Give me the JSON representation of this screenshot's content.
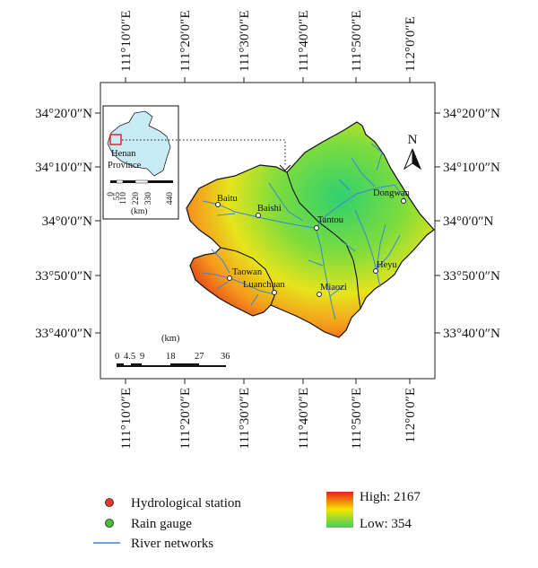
{
  "map": {
    "top_lon_labels": [
      "111°10′0″E",
      "111°20′0″E",
      "111°30′0″E",
      "111°40′0″E",
      "111°50′0″E",
      "112°0′0″E"
    ],
    "bottom_lon_labels": [
      "111°10′0″E",
      "111°20′0″E",
      "111°30′0″E",
      "111°40′0″E",
      "111°50′0″E",
      "112°0′0″E"
    ],
    "left_lat_labels": [
      "34°20′0″N",
      "34°10′0″N",
      "34°0′0″N",
      "33°50′0″N",
      "33°40′0″N"
    ],
    "right_lat_labels": [
      "34°20′0″N",
      "34°10′0″N",
      "34°0′0″N",
      "33°50′0″N",
      "33°40′0″N"
    ],
    "stations": {
      "baitu": "Baitu",
      "baishi": "Baishi",
      "tantou": "Tantou",
      "dongwan": "Dongwan",
      "heyu": "Heyu",
      "taowan": "Taowan",
      "luanchuan": "Luanchuan",
      "miaozi": "Miaozi"
    },
    "north_label": "N",
    "inset": {
      "line1": "Henan",
      "line2": "Province",
      "scale_ticks": [
        "0",
        "55",
        "110",
        "220",
        "330",
        "440"
      ],
      "unit": "(km)"
    },
    "scale": {
      "unit": "(km)",
      "ticks": [
        "0",
        "4.5",
        "9",
        "18",
        "27",
        "36"
      ]
    }
  },
  "legend": {
    "hydro_label": "Hydrological station",
    "rain_label": "Rain gauge",
    "river_label": "River networks",
    "high_label": "High: 2167",
    "low_label": "Low: 354",
    "colors": {
      "hydro": "#e8382c",
      "rain": "#4cbf3a",
      "river": "#3a86d8",
      "high": "#e8201c",
      "mid": "#f6e400",
      "low": "#3fd060"
    }
  }
}
